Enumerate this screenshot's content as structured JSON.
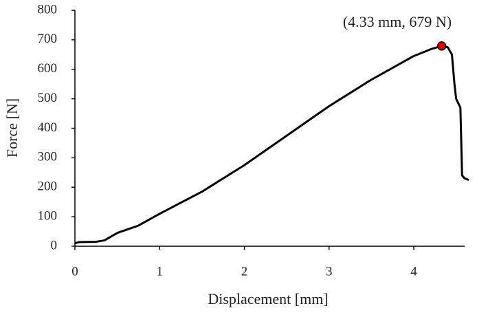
{
  "chart_data": {
    "type": "line",
    "x_label": "Displacement [mm]",
    "y_label": "Force [N]",
    "annotation": "(4.33 mm, 679 N)",
    "x": [
      0,
      0.05,
      0.25,
      0.35,
      0.5,
      0.75,
      1,
      1.5,
      2,
      2.5,
      3,
      3.5,
      4,
      4.2,
      4.33,
      4.4,
      4.45,
      4.48,
      4.5,
      4.55,
      4.57,
      4.6,
      4.65
    ],
    "values": [
      10,
      14,
      15,
      20,
      45,
      70,
      110,
      185,
      275,
      375,
      475,
      565,
      645,
      668,
      679,
      675,
      650,
      550,
      500,
      470,
      240,
      230,
      225
    ],
    "color": "#000000",
    "highlight": {
      "x": 4.33,
      "y": 679,
      "color": "#e00000"
    },
    "xlim": [
      0,
      4.6
    ],
    "ylim": [
      0,
      800
    ],
    "xticks": [
      0,
      1,
      2,
      3,
      4
    ],
    "yticks": [
      0,
      100,
      200,
      300,
      400,
      500,
      600,
      700,
      800
    ],
    "grid": false
  }
}
